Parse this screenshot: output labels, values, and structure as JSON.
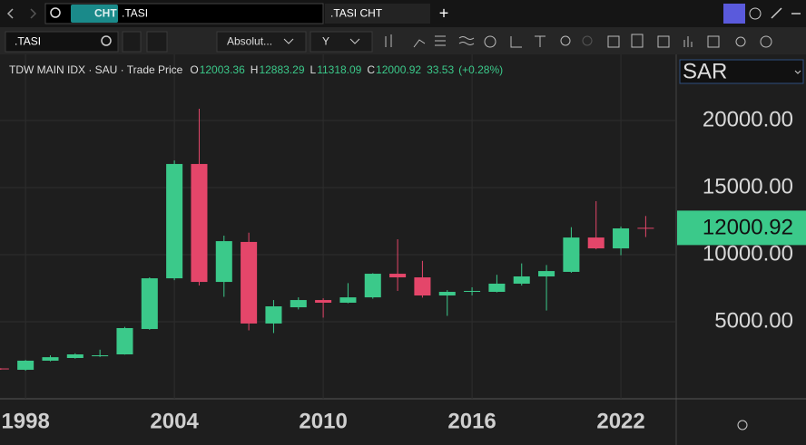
{
  "tabs": {
    "badge": "CHT",
    "symbol": ".TASI",
    "tab_title": ".TASI CHT"
  },
  "toolbar": {
    "symbol": ".TASI",
    "price_type": "Absolut...",
    "interval": "Y"
  },
  "currency": "SAR",
  "chart_data": {
    "type": "candlestick",
    "title": "TDW MAIN IDX · SAU · Trade Price",
    "legend": [
      {
        "label": "O",
        "value": 12003.36
      },
      {
        "label": "H",
        "value": 12883.29
      },
      {
        "label": "L",
        "value": 11318.09
      },
      {
        "label": "C",
        "value": 12000.92
      }
    ],
    "change": 33.53,
    "change_percent_label": "(+0.28%)",
    "last_price": 12000.92,
    "up_color": "#3bc98a",
    "down_color": "#e4466a",
    "x": [
      1997,
      1998,
      1999,
      2000,
      2001,
      2002,
      2003,
      2004,
      2005,
      2006,
      2007,
      2008,
      2009,
      2010,
      2011,
      2012,
      2013,
      2014,
      2015,
      2016,
      2017,
      2018,
      2019,
      2020,
      2021,
      2022,
      2023
    ],
    "open": [
      1520,
      1420,
      2100,
      2300,
      2430,
      2570,
      4460,
      8240,
      16760,
      7970,
      10950,
      4870,
      6080,
      6620,
      6420,
      6820,
      8580,
      8310,
      6960,
      7230,
      7230,
      7840,
      8380,
      8720,
      11280,
      10470,
      12003.36
    ],
    "high": [
      1540,
      2150,
      2500,
      2650,
      2920,
      4620,
      8310,
      17030,
      20880,
      11420,
      11640,
      6620,
      6820,
      6750,
      7880,
      8620,
      11150,
      9540,
      7360,
      7570,
      8500,
      9350,
      9230,
      12050,
      13990,
      12100,
      12883.29
    ],
    "low": [
      1420,
      1350,
      2050,
      2250,
      2380,
      2550,
      4400,
      8100,
      7700,
      6860,
      4360,
      4160,
      5920,
      5310,
      6380,
      6720,
      7300,
      6800,
      5440,
      6960,
      7190,
      7700,
      5840,
      8650,
      10400,
      9960,
      11318.09
    ],
    "close": [
      1460,
      2100,
      2360,
      2570,
      2500,
      4530,
      8240,
      16760,
      7970,
      11010,
      4870,
      6150,
      6620,
      6420,
      6820,
      8580,
      8310,
      6960,
      7230,
      7300,
      7840,
      8380,
      8780,
      11280,
      10470,
      11960,
      12000.92
    ],
    "xlim": [
      1996.97,
      2024.23
    ],
    "xticks": [
      1998,
      2004,
      2010,
      2016,
      2022
    ],
    "ylim": [
      -740,
      24930
    ],
    "yticks": [
      {
        "value": 5000,
        "label": "5000.00"
      },
      {
        "value": 10000,
        "label": "10000.00"
      },
      {
        "value": 15000,
        "label": "15000.00"
      },
      {
        "value": 20000,
        "label": "20000.00"
      }
    ],
    "grid": true
  }
}
